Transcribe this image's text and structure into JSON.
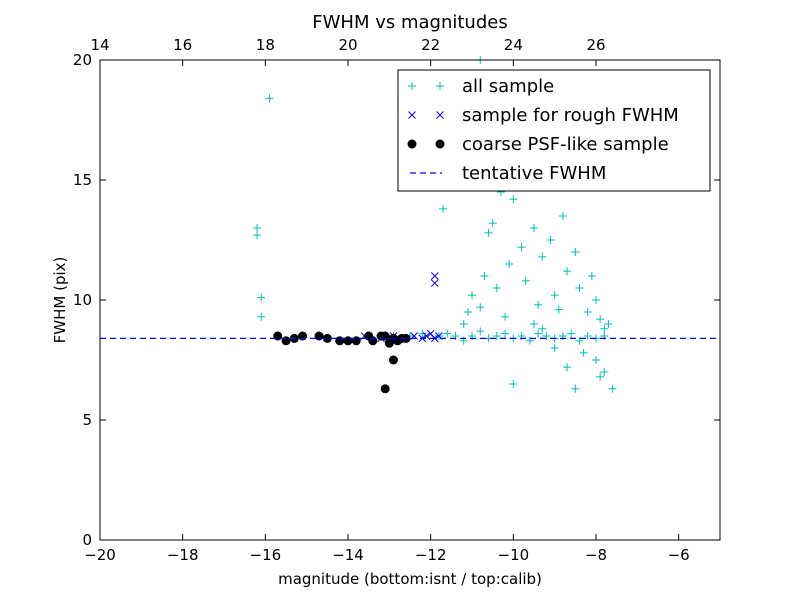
{
  "chart_data": {
    "type": "scatter",
    "title": "FWHM vs magnitudes",
    "xlabel": "magnitude (bottom:isnt / top:calib)",
    "ylabel": "FWHM (pix)",
    "xlim": [
      -20,
      -5
    ],
    "ylim": [
      0,
      20
    ],
    "x_ticks": [
      -20,
      -18,
      -16,
      -14,
      -12,
      -10,
      -8,
      -6
    ],
    "x_tick_labels": [
      "−20",
      "−18",
      "−16",
      "−14",
      "−12",
      "−10",
      "−8",
      "−6"
    ],
    "y_ticks": [
      0,
      5,
      10,
      15,
      20
    ],
    "y_tick_labels": [
      "0",
      "5",
      "10",
      "15",
      "20"
    ],
    "top_axis": {
      "ticks": [
        14,
        16,
        18,
        20,
        22,
        24,
        26
      ],
      "tick_labels": [
        "14",
        "16",
        "18",
        "20",
        "22",
        "24",
        "26"
      ],
      "offset": 34
    },
    "grid": false,
    "legend_position": "top-right",
    "series": [
      {
        "name": "all sample",
        "marker": "plus",
        "color": "#00bfbf",
        "points": [
          [
            -15.9,
            18.4
          ],
          [
            -16.2,
            13.0
          ],
          [
            -16.2,
            12.7
          ],
          [
            -16.1,
            10.1
          ],
          [
            -16.1,
            9.3
          ],
          [
            -11.7,
            13.8
          ],
          [
            -12.9,
            8.5
          ],
          [
            -12.5,
            8.5
          ],
          [
            -12.2,
            8.6
          ],
          [
            -11.8,
            8.5
          ],
          [
            -11.6,
            8.6
          ],
          [
            -11.4,
            8.5
          ],
          [
            -11.2,
            8.3
          ],
          [
            -11.0,
            8.5
          ],
          [
            -10.8,
            8.7
          ],
          [
            -10.6,
            8.4
          ],
          [
            -10.4,
            8.5
          ],
          [
            -10.2,
            8.6
          ],
          [
            -10.0,
            8.4
          ],
          [
            -9.8,
            8.5
          ],
          [
            -9.6,
            8.3
          ],
          [
            -9.4,
            8.6
          ],
          [
            -9.2,
            8.5
          ],
          [
            -9.0,
            8.4
          ],
          [
            -8.8,
            8.5
          ],
          [
            -8.6,
            8.6
          ],
          [
            -8.4,
            8.3
          ],
          [
            -8.2,
            8.5
          ],
          [
            -8.0,
            8.4
          ],
          [
            -7.8,
            8.5
          ],
          [
            -11.2,
            9.0
          ],
          [
            -11.1,
            9.5
          ],
          [
            -11.0,
            10.2
          ],
          [
            -10.8,
            9.7
          ],
          [
            -10.7,
            11.0
          ],
          [
            -10.6,
            12.8
          ],
          [
            -10.5,
            13.2
          ],
          [
            -10.4,
            10.5
          ],
          [
            -10.3,
            14.5
          ],
          [
            -10.2,
            9.3
          ],
          [
            -10.1,
            11.5
          ],
          [
            -10.0,
            14.2
          ],
          [
            -9.9,
            16.5
          ],
          [
            -9.8,
            12.2
          ],
          [
            -9.7,
            10.8
          ],
          [
            -9.6,
            15.2
          ],
          [
            -9.5,
            13.0
          ],
          [
            -9.4,
            9.8
          ],
          [
            -9.3,
            11.8
          ],
          [
            -9.2,
            16.0
          ],
          [
            -9.1,
            12.5
          ],
          [
            -9.0,
            10.2
          ],
          [
            -8.9,
            14.8
          ],
          [
            -8.8,
            13.5
          ],
          [
            -8.7,
            11.2
          ],
          [
            -8.6,
            17.5
          ],
          [
            -8.5,
            12.0
          ],
          [
            -8.4,
            10.5
          ],
          [
            -8.3,
            15.5
          ],
          [
            -8.2,
            9.5
          ],
          [
            -8.1,
            11.0
          ],
          [
            -8.0,
            10.0
          ],
          [
            -7.9,
            9.2
          ],
          [
            -7.8,
            8.8
          ],
          [
            -7.7,
            9.0
          ],
          [
            -8.5,
            6.3
          ],
          [
            -8.0,
            7.5
          ],
          [
            -7.8,
            7.0
          ],
          [
            -7.6,
            6.3
          ],
          [
            -10.0,
            6.5
          ],
          [
            -8.3,
            7.8
          ],
          [
            -7.9,
            6.8
          ],
          [
            -8.6,
            18.5
          ],
          [
            -8.3,
            19.3
          ],
          [
            -10.8,
            20.0
          ],
          [
            -9.0,
            8.0
          ],
          [
            -8.7,
            7.2
          ],
          [
            -9.5,
            9.0
          ],
          [
            -9.3,
            8.8
          ],
          [
            -8.9,
            9.6
          ]
        ]
      },
      {
        "name": "sample for rough FWHM",
        "marker": "x",
        "color": "#0000ff",
        "points": [
          [
            -13.6,
            8.5
          ],
          [
            -13.2,
            8.4
          ],
          [
            -12.9,
            8.5
          ],
          [
            -12.6,
            8.4
          ],
          [
            -12.4,
            8.5
          ],
          [
            -12.2,
            8.4
          ],
          [
            -12.0,
            8.6
          ],
          [
            -11.9,
            8.4
          ],
          [
            -11.8,
            8.5
          ],
          [
            -12.1,
            8.5
          ],
          [
            -11.9,
            11.0
          ],
          [
            -11.9,
            10.7
          ]
        ]
      },
      {
        "name": "coarse PSF-like sample",
        "marker": "circle",
        "color": "#000000",
        "points": [
          [
            -15.7,
            8.5
          ],
          [
            -15.5,
            8.3
          ],
          [
            -15.3,
            8.4
          ],
          [
            -15.1,
            8.5
          ],
          [
            -14.7,
            8.5
          ],
          [
            -14.5,
            8.4
          ],
          [
            -14.2,
            8.3
          ],
          [
            -14.0,
            8.3
          ],
          [
            -13.8,
            8.3
          ],
          [
            -13.5,
            8.5
          ],
          [
            -13.4,
            8.3
          ],
          [
            -13.2,
            8.5
          ],
          [
            -13.1,
            8.5
          ],
          [
            -13.0,
            8.2
          ],
          [
            -12.9,
            8.4
          ],
          [
            -12.7,
            8.4
          ],
          [
            -12.6,
            8.4
          ],
          [
            -12.9,
            7.5
          ],
          [
            -13.1,
            6.3
          ],
          [
            -12.8,
            8.3
          ]
        ]
      },
      {
        "name": "tentative FWHM",
        "marker": "dashed-line",
        "color": "#0000ff",
        "y": 8.4
      }
    ]
  }
}
